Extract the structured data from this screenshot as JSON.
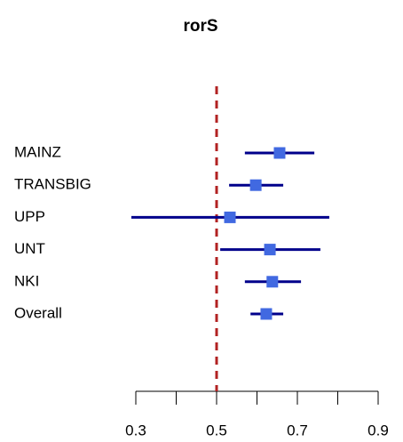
{
  "chart_data": {
    "type": "forest",
    "title": "rorS",
    "categories": [
      "MAINZ",
      "TRANSBIG",
      "UPP",
      "UNT",
      "NKI",
      "Overall"
    ],
    "values": [
      0.656,
      0.597,
      0.533,
      0.632,
      0.638,
      0.623
    ],
    "lower": [
      0.57,
      0.531,
      0.289,
      0.509,
      0.57,
      0.584
    ],
    "upper": [
      0.742,
      0.665,
      0.779,
      0.757,
      0.709,
      0.665
    ],
    "color": "#4169e1",
    "ci_color": "#00008b",
    "reference_line": 0.5,
    "reference_color": "#b22222",
    "xlim": [
      0.3,
      0.9
    ],
    "xticks": [
      0.3,
      0.5,
      0.7,
      0.9
    ],
    "xminor_ticks": [
      0.4,
      0.6,
      0.8
    ]
  }
}
